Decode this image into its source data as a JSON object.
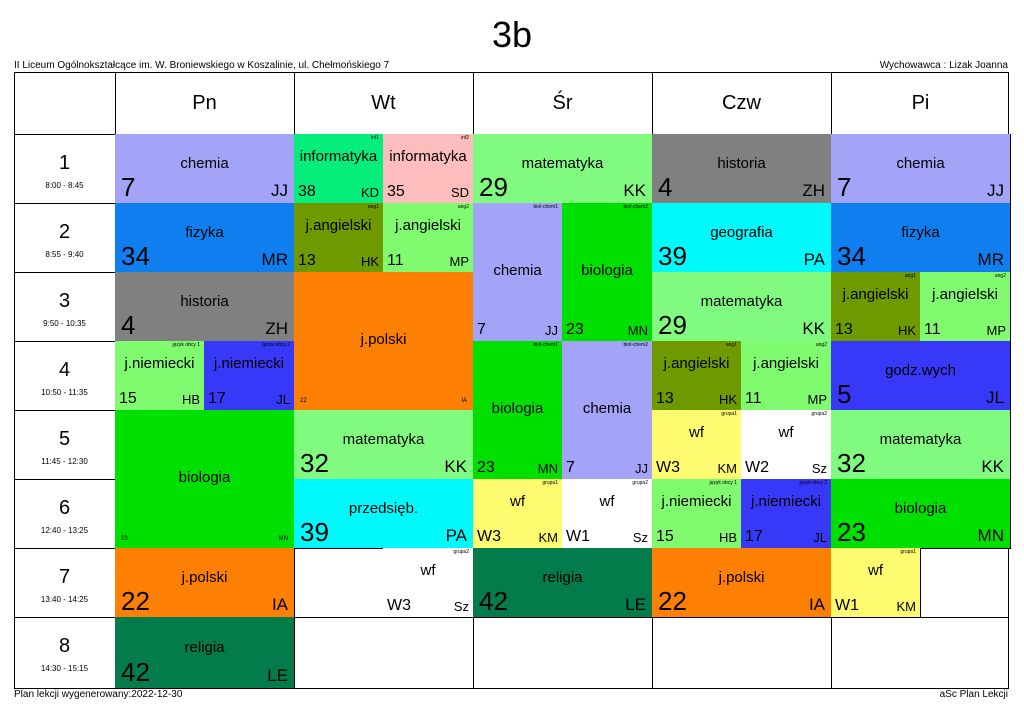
{
  "title": "3b",
  "school": "II Liceum Ogólnokształcące im. W. Broniewskiego w Koszalinie, ul. Chełmońskiego 7",
  "teacher": "Wychowawca : Lizak Joanna",
  "footer_left": "Plan lekcji wygenerowany:2022-12-30",
  "footer_right": "aSc Plan Lekcji",
  "days": [
    "Pn",
    "Wt",
    "Śr",
    "Czw",
    "Pi"
  ],
  "periods": [
    {
      "num": "1",
      "time": "8:00 - 8:45"
    },
    {
      "num": "2",
      "time": "8:55 - 9:40"
    },
    {
      "num": "3",
      "time": "9:50 - 10:35"
    },
    {
      "num": "4",
      "time": "10:50 - 11:35"
    },
    {
      "num": "5",
      "time": "11:45 - 12:30"
    },
    {
      "num": "6",
      "time": "12:40 - 13:25"
    },
    {
      "num": "7",
      "time": "13:40 - 14:25"
    },
    {
      "num": "8",
      "time": "14:30 - 15:15"
    }
  ],
  "lessons": [
    {
      "day": 0,
      "period": 0,
      "span": 1,
      "half": 0,
      "subject": "chemia",
      "room": "7",
      "teacher": "JJ",
      "group": "",
      "color": "c-chem"
    },
    {
      "day": 0,
      "period": 1,
      "span": 1,
      "half": 0,
      "subject": "fizyka",
      "room": "34",
      "teacher": "MR",
      "group": "",
      "color": "c-fiz"
    },
    {
      "day": 0,
      "period": 2,
      "span": 1,
      "half": 0,
      "subject": "historia",
      "room": "4",
      "teacher": "ZH",
      "group": "",
      "color": "c-hist"
    },
    {
      "day": 0,
      "period": 3,
      "span": 1,
      "half": 1,
      "subject": "j.niemiecki",
      "room": "15",
      "teacher": "HB",
      "group": "język obcy 1",
      "color": "c-niem"
    },
    {
      "day": 0,
      "period": 3,
      "span": 1,
      "half": 2,
      "subject": "j.niemiecki",
      "room": "17",
      "teacher": "JL",
      "group": "język obcy 2",
      "color": "c-niem2"
    },
    {
      "day": 0,
      "period": 4,
      "span": 2,
      "half": 0,
      "subject": "biologia",
      "room": "23",
      "teacher": "MN",
      "group": "",
      "color": "c-bio",
      "tiny": true
    },
    {
      "day": 0,
      "period": 6,
      "span": 1,
      "half": 0,
      "subject": "j.polski",
      "room": "22",
      "teacher": "IA",
      "group": "",
      "color": "c-pol"
    },
    {
      "day": 0,
      "period": 7,
      "span": 1,
      "half": 0,
      "subject": "religia",
      "room": "42",
      "teacher": "LE",
      "group": "",
      "color": "c-rel"
    },
    {
      "day": 1,
      "period": 0,
      "span": 1,
      "half": 1,
      "subject": "informatyka",
      "room": "38",
      "teacher": "KD",
      "group": "inf1",
      "color": "c-inf1"
    },
    {
      "day": 1,
      "period": 0,
      "span": 1,
      "half": 2,
      "subject": "informatyka",
      "room": "35",
      "teacher": "SD",
      "group": "inf2",
      "color": "c-inf2"
    },
    {
      "day": 1,
      "period": 1,
      "span": 1,
      "half": 1,
      "subject": "j.angielski",
      "room": "13",
      "teacher": "HK",
      "group": "ang1",
      "color": "c-ang1"
    },
    {
      "day": 1,
      "period": 1,
      "span": 1,
      "half": 2,
      "subject": "j.angielski",
      "room": "11",
      "teacher": "MP",
      "group": "ang2",
      "color": "c-ang2"
    },
    {
      "day": 1,
      "period": 2,
      "span": 2,
      "half": 0,
      "subject": "j.polski",
      "room": "22",
      "teacher": "IA",
      "group": "",
      "color": "c-pol",
      "tiny": true
    },
    {
      "day": 1,
      "period": 4,
      "span": 1,
      "half": 0,
      "subject": "matematyka",
      "room": "32",
      "teacher": "KK",
      "group": "",
      "color": "c-mat"
    },
    {
      "day": 1,
      "period": 5,
      "span": 1,
      "half": 0,
      "subject": "przedsięb.",
      "room": "39",
      "teacher": "PA",
      "group": "",
      "color": "c-przed"
    },
    {
      "day": 1,
      "period": 6,
      "span": 1,
      "half": 2,
      "subject": "wf",
      "room": "W3",
      "teacher": "Sz",
      "group": "grupa2",
      "color": "c-wfw"
    },
    {
      "day": 2,
      "period": 0,
      "span": 1,
      "half": 0,
      "subject": "matematyka",
      "room": "29",
      "teacher": "KK",
      "group": "",
      "color": "c-mat"
    },
    {
      "day": 2,
      "period": 1,
      "span": 2,
      "half": 1,
      "subject": "chemia",
      "room": "7",
      "teacher": "JJ",
      "group": "biol-chem1",
      "color": "c-chem"
    },
    {
      "day": 2,
      "period": 1,
      "span": 2,
      "half": 2,
      "subject": "biologia",
      "room": "23",
      "teacher": "MN",
      "group": "biol-chem2",
      "color": "c-bio"
    },
    {
      "day": 2,
      "period": 3,
      "span": 2,
      "half": 1,
      "subject": "biologia",
      "room": "23",
      "teacher": "MN",
      "group": "biol-chem1",
      "color": "c-bio"
    },
    {
      "day": 2,
      "period": 3,
      "span": 2,
      "half": 2,
      "subject": "chemia",
      "room": "7",
      "teacher": "JJ",
      "group": "biol-chem2",
      "color": "c-chem"
    },
    {
      "day": 2,
      "period": 5,
      "span": 1,
      "half": 1,
      "subject": "wf",
      "room": "W3",
      "teacher": "KM",
      "group": "grupa1",
      "color": "c-wf"
    },
    {
      "day": 2,
      "period": 5,
      "span": 1,
      "half": 2,
      "subject": "wf",
      "room": "W1",
      "teacher": "Sz",
      "group": "grupa2",
      "color": "c-wfw"
    },
    {
      "day": 2,
      "period": 6,
      "span": 1,
      "half": 0,
      "subject": "religia",
      "room": "42",
      "teacher": "LE",
      "group": "",
      "color": "c-rel"
    },
    {
      "day": 3,
      "period": 0,
      "span": 1,
      "half": 0,
      "subject": "historia",
      "room": "4",
      "teacher": "ZH",
      "group": "",
      "color": "c-hist"
    },
    {
      "day": 3,
      "period": 1,
      "span": 1,
      "half": 0,
      "subject": "geografia",
      "room": "39",
      "teacher": "PA",
      "group": "",
      "color": "c-geo"
    },
    {
      "day": 3,
      "period": 2,
      "span": 1,
      "half": 0,
      "subject": "matematyka",
      "room": "29",
      "teacher": "KK",
      "group": "",
      "color": "c-mat"
    },
    {
      "day": 3,
      "period": 3,
      "span": 1,
      "half": 1,
      "subject": "j.angielski",
      "room": "13",
      "teacher": "HK",
      "group": "ang1",
      "color": "c-ang1"
    },
    {
      "day": 3,
      "period": 3,
      "span": 1,
      "half": 2,
      "subject": "j.angielski",
      "room": "11",
      "teacher": "MP",
      "group": "ang2",
      "color": "c-ang2"
    },
    {
      "day": 3,
      "period": 4,
      "span": 1,
      "half": 1,
      "subject": "wf",
      "room": "W3",
      "teacher": "KM",
      "group": "grupa1",
      "color": "c-wf"
    },
    {
      "day": 3,
      "period": 4,
      "span": 1,
      "half": 2,
      "subject": "wf",
      "room": "W2",
      "teacher": "Sz",
      "group": "grupa2",
      "color": "c-wfw"
    },
    {
      "day": 3,
      "period": 5,
      "span": 1,
      "half": 1,
      "subject": "j.niemiecki",
      "room": "15",
      "teacher": "HB",
      "group": "język obcy 1",
      "color": "c-niem"
    },
    {
      "day": 3,
      "period": 5,
      "span": 1,
      "half": 2,
      "subject": "j.niemiecki",
      "room": "17",
      "teacher": "JL",
      "group": "język obcy 2",
      "color": "c-niem2"
    },
    {
      "day": 3,
      "period": 6,
      "span": 1,
      "half": 0,
      "subject": "j.polski",
      "room": "22",
      "teacher": "IA",
      "group": "",
      "color": "c-pol"
    },
    {
      "day": 4,
      "period": 0,
      "span": 1,
      "half": 0,
      "subject": "chemia",
      "room": "7",
      "teacher": "JJ",
      "group": "",
      "color": "c-chem"
    },
    {
      "day": 4,
      "period": 1,
      "span": 1,
      "half": 0,
      "subject": "fizyka",
      "room": "34",
      "teacher": "MR",
      "group": "",
      "color": "c-fiz"
    },
    {
      "day": 4,
      "period": 2,
      "span": 1,
      "half": 1,
      "subject": "j.angielski",
      "room": "13",
      "teacher": "HK",
      "group": "ang1",
      "color": "c-ang1"
    },
    {
      "day": 4,
      "period": 2,
      "span": 1,
      "half": 2,
      "subject": "j.angielski",
      "room": "11",
      "teacher": "MP",
      "group": "ang2",
      "color": "c-ang2"
    },
    {
      "day": 4,
      "period": 3,
      "span": 1,
      "half": 0,
      "subject": "godz.wych",
      "room": "5",
      "teacher": "JL",
      "group": "",
      "color": "c-godz"
    },
    {
      "day": 4,
      "period": 4,
      "span": 1,
      "half": 0,
      "subject": "matematyka",
      "room": "32",
      "teacher": "KK",
      "group": "",
      "color": "c-mat"
    },
    {
      "day": 4,
      "period": 5,
      "span": 1,
      "half": 0,
      "subject": "biologia",
      "room": "23",
      "teacher": "MN",
      "group": "",
      "color": "c-bio"
    },
    {
      "day": 4,
      "period": 6,
      "span": 1,
      "half": 1,
      "subject": "wf",
      "room": "W1",
      "teacher": "KM",
      "group": "grupa1",
      "color": "c-wf"
    }
  ]
}
